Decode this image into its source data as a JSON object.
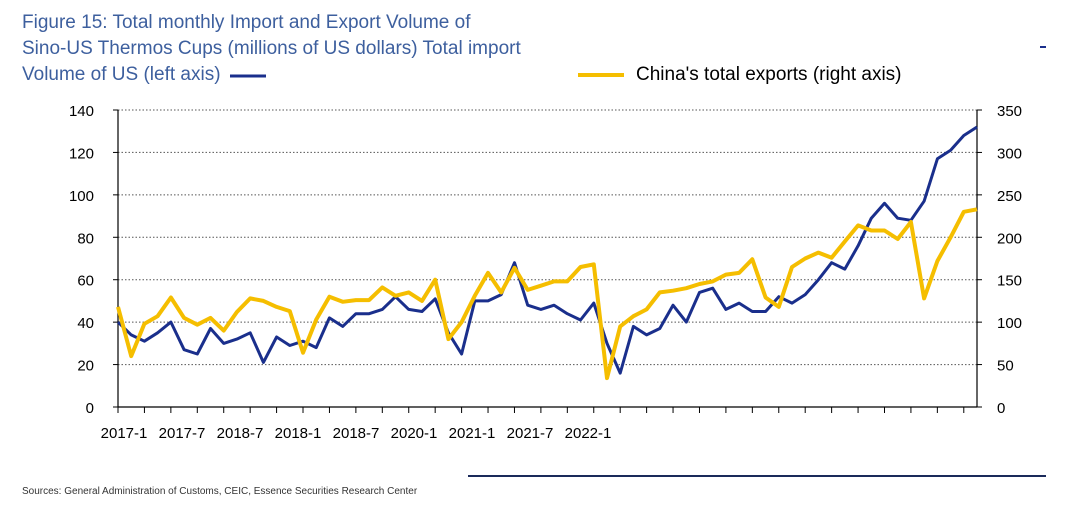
{
  "title_lines": [
    "Figure 15: Total monthly Import and Export Volume of",
    "Sino-US Thermos Cups (millions of US dollars) Total import",
    " Volume of US (left axis)"
  ],
  "source": "Sources: General Administration of Customs, CEIC, Essence Securities Research Center",
  "colors": {
    "title": "#3d5f9e",
    "us_imports": "#1a2f8c",
    "china_exports": "#f5be00"
  },
  "chart_data": {
    "type": "line",
    "title": "Figure 15: Total monthly Import and Export Volume of Sino-US Thermos Cups (millions of US dollars)",
    "grid": true,
    "legend_placement": "top",
    "x_tick_labels": [
      "2017-1",
      "2017-7",
      "2018-7",
      "2018-1",
      "2018-7",
      "2020-1",
      "2021-1",
      "2021-7",
      "2022-1"
    ],
    "y_left": {
      "ylim": [
        0,
        140
      ],
      "ticks": [
        0,
        20,
        40,
        60,
        80,
        100,
        120,
        140
      ]
    },
    "y_right": {
      "ylim": [
        0,
        350
      ],
      "ticks": [
        0,
        50,
        100,
        150,
        200,
        250,
        300,
        350
      ]
    },
    "series": [
      {
        "name": "Total import Volume of US (left axis)",
        "axis": "left",
        "color": "#1a2f8c",
        "values": [
          40,
          34,
          31,
          35,
          40,
          27,
          25,
          37,
          30,
          32,
          35,
          21,
          33,
          29,
          31,
          28,
          42,
          38,
          44,
          44,
          46,
          52,
          46,
          45,
          51,
          35,
          25,
          50,
          50,
          53,
          68,
          48,
          46,
          48,
          44,
          41,
          49,
          30,
          16,
          38,
          34,
          37,
          48,
          40,
          54,
          56,
          46,
          49,
          45,
          45,
          52,
          49,
          53,
          60,
          68,
          65,
          76,
          89,
          96,
          89,
          88,
          97,
          117,
          121,
          128,
          132
        ]
      },
      {
        "name": "China's total exports (right axis)",
        "axis": "right",
        "color": "#f5be00",
        "values": [
          118,
          60,
          98,
          107,
          129,
          105,
          97,
          105,
          90,
          112,
          128,
          125,
          118,
          113,
          64,
          103,
          130,
          124,
          126,
          126,
          141,
          131,
          135,
          125,
          150,
          80,
          100,
          131,
          158,
          135,
          164,
          138,
          143,
          148,
          148,
          165,
          168,
          34,
          95,
          107,
          115,
          135,
          137,
          140,
          145,
          148,
          156,
          158,
          174,
          129,
          118,
          165,
          175,
          182,
          176,
          195,
          214,
          208,
          208,
          198,
          218,
          128,
          172,
          200,
          230,
          233
        ]
      }
    ]
  }
}
